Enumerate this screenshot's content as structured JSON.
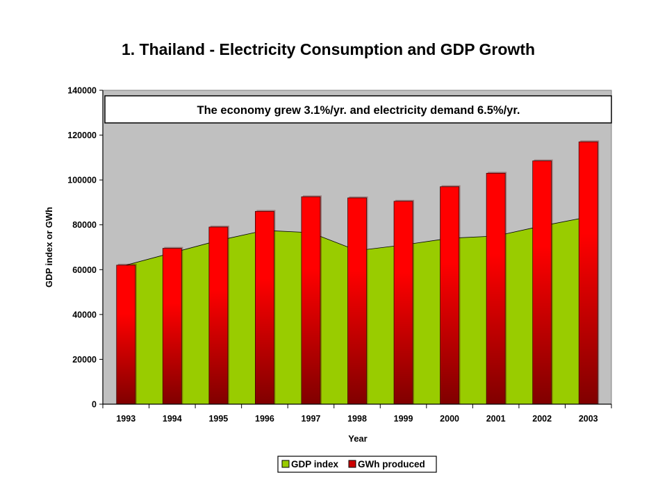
{
  "title": "1.  Thailand - Electricity Consumption and GDP Growth",
  "colors": {
    "plot_background": "#c0c0c0",
    "gdp_fill": "#99cc00",
    "bar_top": "#ff0000",
    "bar_bottom": "#800000"
  },
  "chart_data": {
    "type": "bar",
    "annotation": "The economy grew 3.1%/yr. and electricity demand 6.5%/yr.",
    "xlabel": "Year",
    "ylabel": "GDP index or GWh",
    "ylim": [
      0,
      140000
    ],
    "yticks": [
      0,
      20000,
      40000,
      60000,
      80000,
      100000,
      120000,
      140000
    ],
    "categories": [
      "1993",
      "1994",
      "1995",
      "1996",
      "1997",
      "1998",
      "1999",
      "2000",
      "2001",
      "2002",
      "2003"
    ],
    "grid": false,
    "legend_position": "bottom",
    "series": [
      {
        "name": "GDP index",
        "type": "area",
        "color": "#99cc00",
        "values": [
          62000,
          67500,
          73000,
          77500,
          76500,
          68500,
          71000,
          74000,
          75000,
          79500,
          83500
        ]
      },
      {
        "name": "GWh produced",
        "type": "bar",
        "color": "#ff0000",
        "values": [
          62000,
          69500,
          79000,
          86000,
          92500,
          92000,
          90500,
          97000,
          103000,
          108500,
          117000
        ]
      }
    ]
  }
}
